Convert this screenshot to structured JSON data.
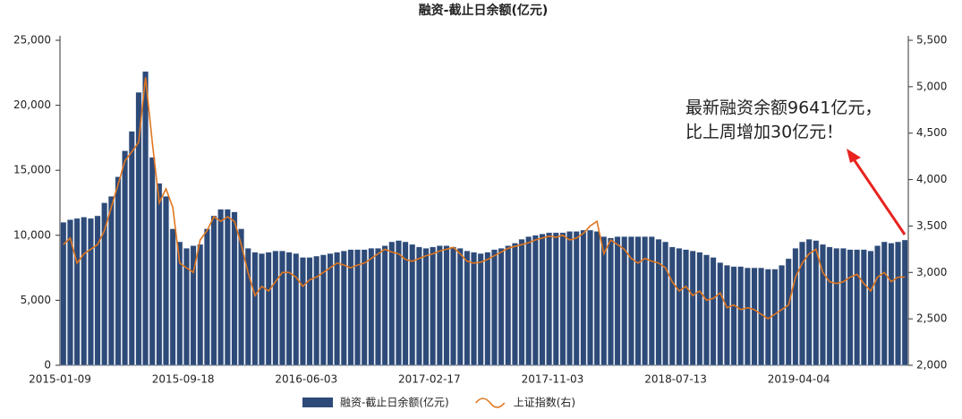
{
  "chart_data": {
    "type": "combo",
    "title": "融资-截止日余额(亿元)",
    "categories": [
      "2015-01-09",
      null,
      null,
      null,
      null,
      null,
      null,
      null,
      null,
      null,
      null,
      null,
      null,
      null,
      null,
      null,
      null,
      null,
      "2015-09-18",
      null,
      null,
      null,
      null,
      null,
      null,
      null,
      null,
      null,
      null,
      null,
      null,
      null,
      null,
      null,
      null,
      null,
      "2016-06-03",
      null,
      null,
      null,
      null,
      null,
      null,
      null,
      null,
      null,
      null,
      null,
      null,
      null,
      null,
      null,
      null,
      null,
      "2017-02-17",
      null,
      null,
      null,
      null,
      null,
      null,
      null,
      null,
      null,
      null,
      null,
      null,
      null,
      null,
      null,
      null,
      null,
      "2017-11-03",
      null,
      null,
      null,
      null,
      null,
      null,
      null,
      null,
      null,
      null,
      null,
      null,
      null,
      null,
      null,
      null,
      null,
      "2018-07-13",
      null,
      null,
      null,
      null,
      null,
      null,
      null,
      null,
      null,
      null,
      null,
      null,
      null,
      null,
      null,
      null,
      null,
      "2019-04-04",
      null,
      null,
      null,
      null,
      null,
      null,
      null,
      null,
      null,
      null,
      null,
      null,
      null,
      null,
      null
    ],
    "series": [
      {
        "name": "融资-截止日余额(亿元)",
        "type": "bar",
        "color": "#2d4a78",
        "values": [
          11000,
          11200,
          11300,
          11400,
          11300,
          11500,
          12500,
          13000,
          14500,
          16500,
          18000,
          21000,
          22600,
          16000,
          14000,
          13000,
          10500,
          9500,
          9000,
          9200,
          9300,
          10500,
          11500,
          12000,
          12000,
          11800,
          10500,
          9000,
          8700,
          8600,
          8700,
          8800,
          8800,
          8700,
          8600,
          8300,
          8300,
          8400,
          8500,
          8600,
          8700,
          8800,
          8900,
          8900,
          8900,
          9000,
          9000,
          9200,
          9500,
          9600,
          9500,
          9300,
          9100,
          9000,
          9100,
          9200,
          9200,
          9100,
          9000,
          8800,
          8700,
          8600,
          8700,
          8900,
          9000,
          9200,
          9400,
          9700,
          9900,
          10000,
          10100,
          10200,
          10200,
          10200,
          10300,
          10300,
          10400,
          10400,
          10300,
          9900,
          9800,
          9900,
          9900,
          9900,
          9900,
          9900,
          9900,
          9700,
          9500,
          9100,
          9000,
          8900,
          8800,
          8700,
          8500,
          8300,
          7900,
          7700,
          7600,
          7600,
          7500,
          7500,
          7500,
          7400,
          7400,
          7700,
          8200,
          9000,
          9500,
          9700,
          9600,
          9300,
          9100,
          9000,
          9000,
          8900,
          8900,
          8900,
          8800,
          9200,
          9500,
          9400,
          9500,
          9641
        ]
      },
      {
        "name": "上证指数(右)",
        "type": "line",
        "axis": "y2",
        "color": "#e0761f",
        "values": [
          3300,
          3370,
          3100,
          3200,
          3250,
          3300,
          3450,
          3700,
          3950,
          4200,
          4300,
          4400,
          5100,
          4400,
          3750,
          3900,
          3700,
          3100,
          3050,
          3000,
          3350,
          3450,
          3600,
          3550,
          3600,
          3550,
          3300,
          3000,
          2750,
          2850,
          2800,
          2900,
          3000,
          3000,
          2950,
          2850,
          2920,
          2950,
          3000,
          3050,
          3100,
          3080,
          3050,
          3080,
          3100,
          3150,
          3200,
          3250,
          3220,
          3200,
          3140,
          3120,
          3150,
          3180,
          3200,
          3230,
          3250,
          3270,
          3200,
          3120,
          3100,
          3110,
          3140,
          3180,
          3220,
          3260,
          3280,
          3300,
          3320,
          3350,
          3370,
          3390,
          3380,
          3400,
          3350,
          3370,
          3420,
          3500,
          3550,
          3200,
          3350,
          3300,
          3250,
          3150,
          3100,
          3150,
          3120,
          3100,
          3050,
          2900,
          2800,
          2850,
          2750,
          2800,
          2700,
          2720,
          2780,
          2620,
          2650,
          2600,
          2620,
          2600,
          2550,
          2500,
          2550,
          2600,
          2650,
          2950,
          3100,
          3200,
          3250,
          3000,
          2900,
          2880,
          2900,
          2950,
          2980,
          2880,
          2800,
          2950,
          3000,
          2900,
          2950,
          2950
        ]
      }
    ],
    "ylim": [
      0,
      25000
    ],
    "yticks": [
      0,
      {
        "value": 5000,
        "label": "5,000"
      },
      {
        "value": 10000,
        "label": "10,000"
      },
      {
        "value": 15000,
        "label": "15,000"
      },
      {
        "value": 20000,
        "label": "20,000"
      },
      {
        "value": 25000,
        "label": "25,000"
      }
    ],
    "y2lim": [
      2000,
      5500
    ],
    "y2ticks": [
      {
        "value": 2000,
        "label": "2,000"
      },
      {
        "value": 2500,
        "label": "2,500"
      },
      {
        "value": 3000,
        "label": "3,000"
      },
      {
        "value": 3500,
        "label": "3,500"
      },
      {
        "value": 4000,
        "label": "4,000"
      },
      {
        "value": 4500,
        "label": "4,500"
      },
      {
        "value": 5000,
        "label": "5,000"
      },
      {
        "value": 5500,
        "label": "5,500"
      }
    ],
    "grid": false,
    "legend": "bottom",
    "annotations": [
      "最新融资余额9641亿元，",
      "比上周增加30亿元！"
    ],
    "annotation_color": "#e8231f"
  }
}
